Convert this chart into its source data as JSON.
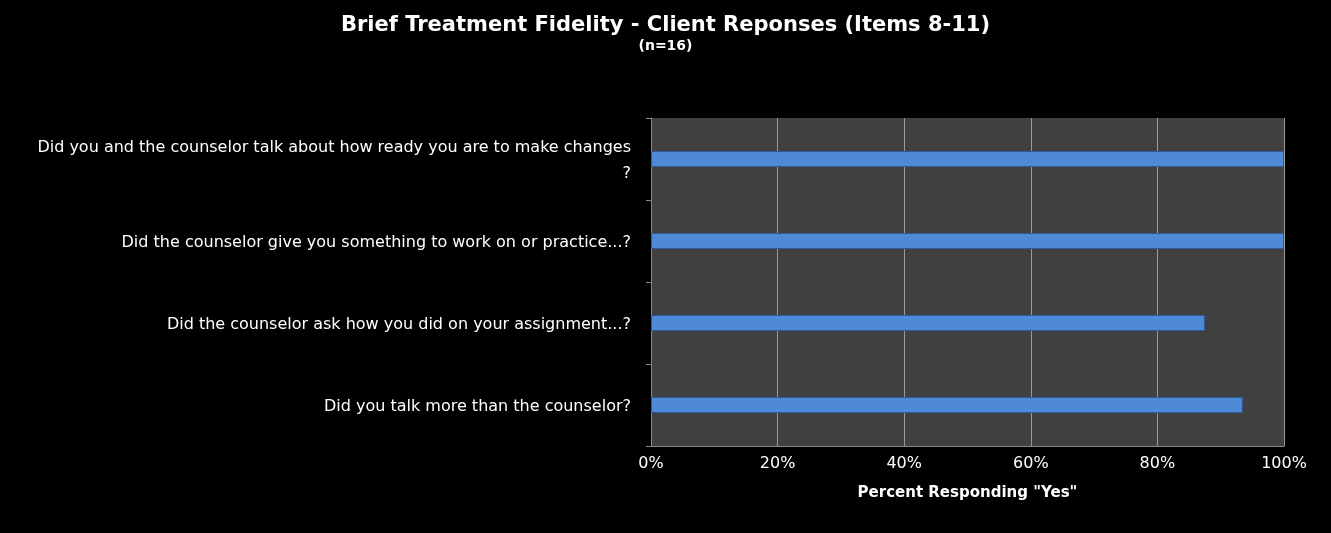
{
  "chart_data": {
    "type": "bar",
    "orientation": "horizontal",
    "title": "Brief Treatment Fidelity - Client Reponses (Items 8-11)",
    "subtitle": "(n=16)",
    "xlabel": "Percent Responding \"Yes\"",
    "categories": [
      "Did you and the counselor talk about how ready you are to make changes?",
      "Did the counselor give you something to work on or practice...?",
      "Did the counselor ask how you did on your assignment...?",
      "Did you talk more than the counselor?"
    ],
    "values": [
      100,
      100,
      87.5,
      93.5
    ],
    "color": "#4f8ad6",
    "xlim": [
      0,
      100
    ],
    "xticks": [
      {
        "value": 0,
        "label": "0%"
      },
      {
        "value": 20,
        "label": "20%"
      },
      {
        "value": 40,
        "label": "40%"
      },
      {
        "value": 60,
        "label": "60%"
      },
      {
        "value": 80,
        "label": "80%"
      },
      {
        "value": 100,
        "label": "100%"
      }
    ],
    "grid": "x"
  }
}
